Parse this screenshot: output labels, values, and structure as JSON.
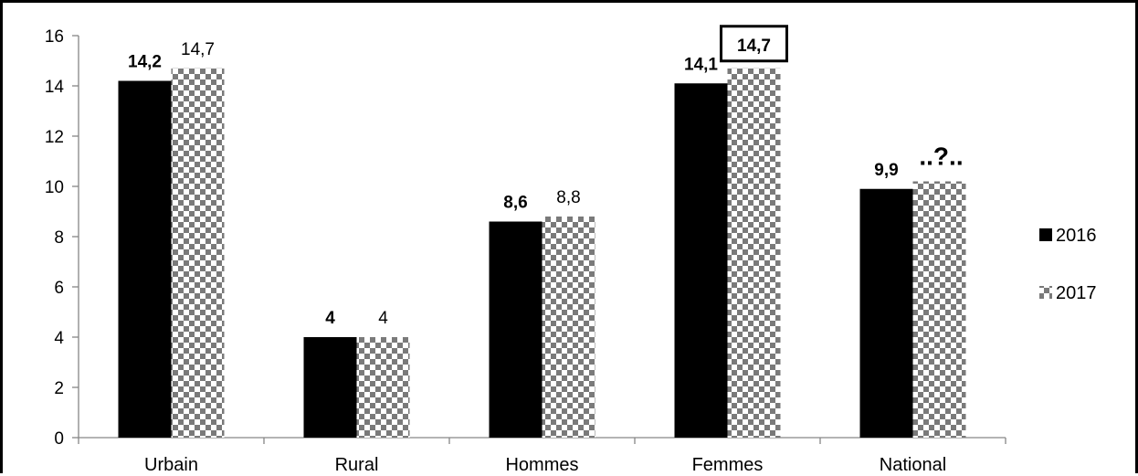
{
  "chart_data": {
    "type": "bar",
    "categories": [
      "Urbain",
      "Rural",
      "Hommes",
      "Femmes",
      "National"
    ],
    "series": [
      {
        "name": "2016",
        "color": "#000000",
        "pattern": "solid",
        "values": [
          14.2,
          4,
          8.6,
          14.1,
          9.9
        ],
        "labels": [
          "14,2",
          "4",
          "8,6",
          "14,1",
          "9,9"
        ],
        "label_style": "bold"
      },
      {
        "name": "2017",
        "color": "#808080",
        "pattern": "checkerboard",
        "values": [
          14.7,
          4,
          8.8,
          14.7,
          10.2
        ],
        "labels": [
          "14,7",
          "4",
          "8,8",
          "14,7",
          "..?.."
        ],
        "label_style": "normal",
        "highlighted_label": "14,7",
        "unknown_label": "..?.."
      }
    ],
    "ylim": [
      0,
      16
    ],
    "yticks": [
      0,
      2,
      4,
      6,
      8,
      10,
      12,
      14,
      16
    ],
    "ytick_labels": [
      "0",
      "2",
      "4",
      "6",
      "8",
      "10",
      "12",
      "14",
      "16"
    ],
    "grid": false,
    "legend_position": "right",
    "title": "",
    "xlabel": "",
    "ylabel": ""
  }
}
